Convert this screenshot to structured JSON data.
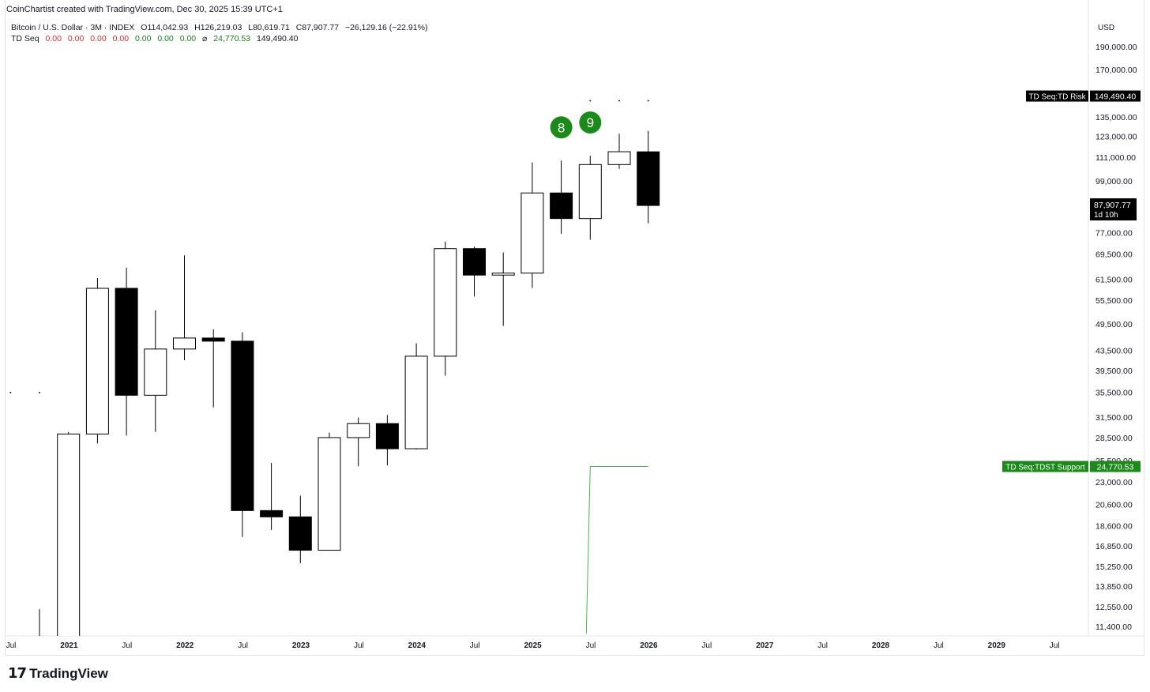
{
  "caption": "CoinChartist created with TradingView.com, Dec 30, 2025 15:39 UTC+1",
  "legend": {
    "symbol": "Bitcoin / U.S. Dollar · 3M · INDEX",
    "o": "O114,042.93",
    "h": "H126,219.03",
    "l": "L80,619.71",
    "c": "C87,907.77",
    "chg": "−26,129.16 (−22.91%)",
    "indicator": "TD Seq",
    "zeros_red": [
      "0.00",
      "0.00",
      "0.00",
      "0.00"
    ],
    "zeros_green": [
      "0.00",
      "0.00",
      "0.00"
    ],
    "diameter": "⌀",
    "tdst": "24,770.53",
    "risk": "149,490.40"
  },
  "currency": "USD",
  "brand": "TradingView",
  "chart_data": {
    "type": "candlestick",
    "log_scale": true,
    "ylim": [
      11000,
      210000
    ],
    "y_ticks": [
      "190,000.00",
      "170,000.00",
      "135,000.00",
      "123,000.00",
      "111,000.00",
      "99,000.00",
      "77,000.00",
      "69,500.00",
      "61,500.00",
      "55,500.00",
      "49,500.00",
      "43,500.00",
      "39,500.00",
      "35,500.00",
      "31,500.00",
      "28,500.00",
      "25,500.00",
      "23,000.00",
      "20,600.00",
      "18,600.00",
      "16,850.00",
      "15,250.00",
      "13,850.00",
      "12,550.00",
      "11,400.00"
    ],
    "x_ticks": [
      "Jul",
      "2021",
      "Jul",
      "2022",
      "Jul",
      "2023",
      "Jul",
      "2024",
      "Jul",
      "2025",
      "Jul",
      "2026",
      "Jul",
      "2027",
      "Jul",
      "2028",
      "Jul",
      "2029",
      "Jul"
    ],
    "x_ticks_bold": [
      false,
      true,
      false,
      true,
      false,
      true,
      false,
      true,
      false,
      true,
      false,
      true,
      false,
      true,
      false,
      true,
      false,
      true,
      false
    ],
    "candles": [
      {
        "period": "2020 Q3",
        "o": 9300,
        "h": 12400,
        "l": 8900,
        "c": 10800
      },
      {
        "period": "2020 Q4",
        "o": 10800,
        "h": 29300,
        "l": 10400,
        "c": 29000
      },
      {
        "period": "2021 Q1",
        "o": 29000,
        "h": 61800,
        "l": 27700,
        "c": 58800
      },
      {
        "period": "2021 Q2",
        "o": 58800,
        "h": 65000,
        "l": 28800,
        "c": 35000
      },
      {
        "period": "2021 Q3",
        "o": 35000,
        "h": 52900,
        "l": 29300,
        "c": 43800
      },
      {
        "period": "2021 Q4",
        "o": 43800,
        "h": 69000,
        "l": 41500,
        "c": 46200
      },
      {
        "period": "2022 Q1",
        "o": 46200,
        "h": 48200,
        "l": 33000,
        "c": 45500
      },
      {
        "period": "2022 Q2",
        "o": 45500,
        "h": 47500,
        "l": 17600,
        "c": 20000
      },
      {
        "period": "2022 Q3",
        "o": 20000,
        "h": 25200,
        "l": 18200,
        "c": 19400
      },
      {
        "period": "2022 Q4",
        "o": 19400,
        "h": 21500,
        "l": 15500,
        "c": 16500
      },
      {
        "period": "2023 Q1",
        "o": 16500,
        "h": 29200,
        "l": 16500,
        "c": 28500
      },
      {
        "period": "2023 Q2",
        "o": 28500,
        "h": 31400,
        "l": 24800,
        "c": 30500
      },
      {
        "period": "2023 Q3",
        "o": 30500,
        "h": 31800,
        "l": 24900,
        "c": 27000
      },
      {
        "period": "2023 Q4",
        "o": 27000,
        "h": 45000,
        "l": 26900,
        "c": 42300
      },
      {
        "period": "2024 Q1",
        "o": 42300,
        "h": 73800,
        "l": 38500,
        "c": 71300
      },
      {
        "period": "2024 Q2",
        "o": 71300,
        "h": 72000,
        "l": 56500,
        "c": 62700
      },
      {
        "period": "2024 Q3",
        "o": 62700,
        "h": 70000,
        "l": 49000,
        "c": 63300
      },
      {
        "period": "2024 Q4",
        "o": 63300,
        "h": 108300,
        "l": 58900,
        "c": 93400
      },
      {
        "period": "2025 Q1",
        "o": 93400,
        "h": 109300,
        "l": 76600,
        "c": 82500
      },
      {
        "period": "2025 Q2",
        "o": 82500,
        "h": 111900,
        "l": 74400,
        "c": 107200
      },
      {
        "period": "2025 Q3",
        "o": 107200,
        "h": 124500,
        "l": 105000,
        "c": 114100
      },
      {
        "period": "2025 Q4",
        "o": 114042.93,
        "h": 126219.03,
        "l": 80619.71,
        "c": 87907.77
      }
    ],
    "td_counts": [
      {
        "candle": 18,
        "label": "8"
      },
      {
        "candle": 19,
        "label": "9"
      }
    ],
    "risk_dots": [
      {
        "candle": 19,
        "value": 149490.4
      },
      {
        "candle": 20,
        "value": 149490.4
      },
      {
        "candle": 21,
        "value": 149490.4
      }
    ],
    "left_dots": [
      {
        "candle": -1,
        "value": 36300
      },
      {
        "candle": 0,
        "value": 36300
      }
    ],
    "tdst_support": {
      "start_candle": 19,
      "end_candle": 21,
      "value": 24770.53,
      "from_value": 11000
    },
    "price_tags": [
      {
        "kind": "risk",
        "label": "TD Seq:TD Risk",
        "value_text": "149,490.40",
        "value": 149490.4,
        "color": "#000000"
      },
      {
        "kind": "close",
        "label": "",
        "value_text": "87,907.77",
        "sub": "1d 10h",
        "value": 87907.77,
        "color": "#000000"
      },
      {
        "kind": "tdst",
        "label": "TD Seq:TDST Support",
        "value_text": "24,770.53",
        "value": 24770.53,
        "color": "#1b8a1b"
      }
    ],
    "colors": {
      "up_fill": "#ffffff",
      "down_fill": "#000000",
      "outline": "#000000",
      "td_green": "#1b8a1b",
      "tdst_line": "#4caf50"
    }
  }
}
